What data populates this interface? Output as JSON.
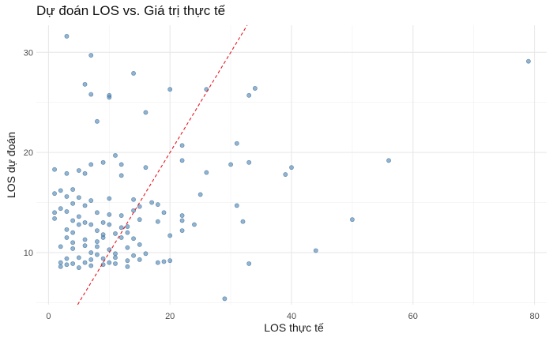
{
  "chart_data": {
    "type": "scatter",
    "title": "Dự đoán LOS vs. Giá trị thực tế",
    "xlabel": "LOS thực tế",
    "ylabel": "LOS dự đoán",
    "xlim": [
      -2,
      82
    ],
    "ylim": [
      4.8,
      32.7
    ],
    "xticks": [
      0,
      20,
      40,
      60,
      80
    ],
    "yticks": [
      10,
      20,
      30
    ],
    "grid": true,
    "point_color": "#4682b4",
    "reference_line": {
      "slope": 1,
      "intercept": 0,
      "color": "#e8161f",
      "style": "dashed"
    },
    "points": [
      [
        3,
        31.6
      ],
      [
        7,
        29.7
      ],
      [
        14,
        27.9
      ],
      [
        6,
        26.8
      ],
      [
        20,
        26.3
      ],
      [
        26,
        26.3
      ],
      [
        34,
        26.4
      ],
      [
        7,
        25.8
      ],
      [
        10,
        25.7
      ],
      [
        10,
        25.5
      ],
      [
        33,
        25.7
      ],
      [
        79,
        29.1
      ],
      [
        16,
        24.0
      ],
      [
        8,
        23.1
      ],
      [
        31,
        20.9
      ],
      [
        22,
        20.7
      ],
      [
        11,
        19.7
      ],
      [
        12,
        18.8
      ],
      [
        9,
        19.0
      ],
      [
        7,
        18.8
      ],
      [
        56,
        19.2
      ],
      [
        22,
        19.2
      ],
      [
        33,
        19.0
      ],
      [
        30,
        18.8
      ],
      [
        1,
        18.3
      ],
      [
        5,
        18.2
      ],
      [
        3,
        17.9
      ],
      [
        6,
        17.9
      ],
      [
        12,
        17.7
      ],
      [
        16,
        18.5
      ],
      [
        26,
        18.0
      ],
      [
        40,
        18.5
      ],
      [
        39,
        17.8
      ],
      [
        2,
        16.2
      ],
      [
        4,
        16.3
      ],
      [
        1,
        15.9
      ],
      [
        3,
        15.6
      ],
      [
        5,
        15.5
      ],
      [
        7,
        15.2
      ],
      [
        10,
        15.4
      ],
      [
        14,
        15.3
      ],
      [
        17,
        15.0
      ],
      [
        18,
        14.8
      ],
      [
        25,
        15.8
      ],
      [
        2,
        14.4
      ],
      [
        4,
        14.9
      ],
      [
        6,
        14.7
      ],
      [
        1,
        14.0
      ],
      [
        3,
        14.1
      ],
      [
        5,
        13.6
      ],
      [
        8,
        14.0
      ],
      [
        10,
        13.8
      ],
      [
        12,
        13.7
      ],
      [
        14,
        14.2
      ],
      [
        15,
        14.6
      ],
      [
        19,
        14.0
      ],
      [
        22,
        13.7
      ],
      [
        31,
        14.7
      ],
      [
        1,
        13.4
      ],
      [
        4,
        13.2
      ],
      [
        5,
        12.8
      ],
      [
        6,
        13.0
      ],
      [
        7,
        12.8
      ],
      [
        9,
        13.0
      ],
      [
        10,
        12.8
      ],
      [
        12,
        12.5
      ],
      [
        13,
        12.6
      ],
      [
        15,
        13.3
      ],
      [
        18,
        13.1
      ],
      [
        22,
        13.2
      ],
      [
        24,
        12.8
      ],
      [
        32,
        13.1
      ],
      [
        50,
        13.3
      ],
      [
        3,
        12.3
      ],
      [
        4,
        12.0
      ],
      [
        8,
        12.2
      ],
      [
        9,
        11.8
      ],
      [
        11,
        11.9
      ],
      [
        13,
        12.0
      ],
      [
        20,
        11.7
      ],
      [
        22,
        12.2
      ],
      [
        3,
        11.5
      ],
      [
        4,
        11.0
      ],
      [
        6,
        11.3
      ],
      [
        8,
        11.1
      ],
      [
        9,
        11.5
      ],
      [
        12,
        11.5
      ],
      [
        14,
        11.4
      ],
      [
        2,
        10.6
      ],
      [
        4,
        10.4
      ],
      [
        6,
        10.7
      ],
      [
        8,
        10.6
      ],
      [
        10,
        10.3
      ],
      [
        13,
        10.5
      ],
      [
        15,
        10.8
      ],
      [
        7,
        10.0
      ],
      [
        8,
        9.8
      ],
      [
        11,
        9.9
      ],
      [
        14,
        9.7
      ],
      [
        16,
        9.9
      ],
      [
        44,
        10.2
      ],
      [
        5,
        9.5
      ],
      [
        7,
        9.3
      ],
      [
        9,
        9.4
      ],
      [
        11,
        9.5
      ],
      [
        13,
        9.2
      ],
      [
        15,
        9.3
      ],
      [
        18,
        9.0
      ],
      [
        19,
        9.1
      ],
      [
        20,
        9.2
      ],
      [
        3,
        9.4
      ],
      [
        2,
        9.0
      ],
      [
        4,
        8.9
      ],
      [
        6,
        9.0
      ],
      [
        9,
        8.8
      ],
      [
        10,
        9.0
      ],
      [
        11,
        8.9
      ],
      [
        2,
        8.6
      ],
      [
        3,
        8.8
      ],
      [
        5,
        8.5
      ],
      [
        7,
        8.7
      ],
      [
        13,
        8.6
      ],
      [
        33,
        8.9
      ],
      [
        29,
        5.4
      ]
    ]
  }
}
